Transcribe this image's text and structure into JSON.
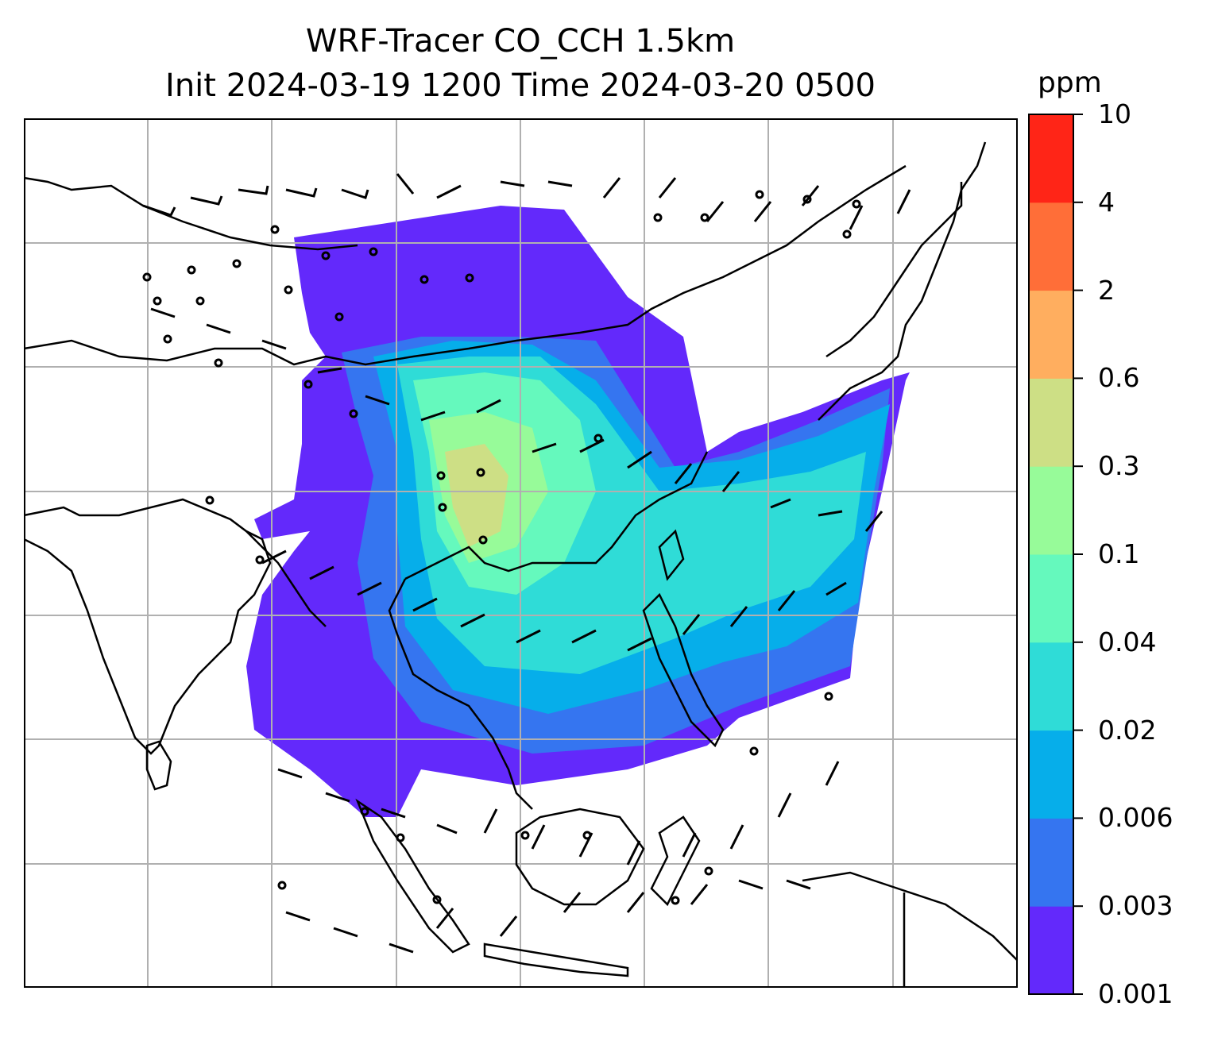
{
  "title_line1": "WRF-Tracer CO_CCH 1.5km",
  "title_line2": "Init 2024-03-19 1200 Time 2024-03-20 0500",
  "colorbar": {
    "unit": "ppm",
    "levels": [
      "0.001",
      "0.003",
      "0.006",
      "0.02",
      "0.04",
      "0.1",
      "0.3",
      "0.6",
      "2",
      "4",
      "10"
    ],
    "colors": [
      "#6329fb",
      "#3575f0",
      "#06aeea",
      "#2fdcd7",
      "#65f9bd",
      "#97fb99",
      "#cddf85",
      "#ffae5f",
      "#ff6e38",
      "#ff2517"
    ]
  },
  "map": {
    "background": "#ffffff",
    "gridline_color": "#b0b0b0",
    "coastline_color": "#000000",
    "plume_colors": [
      "#6329fb",
      "#3575f0",
      "#06aeea",
      "#2fdcd7",
      "#65f9bd",
      "#97fb99",
      "#cddf85"
    ]
  }
}
